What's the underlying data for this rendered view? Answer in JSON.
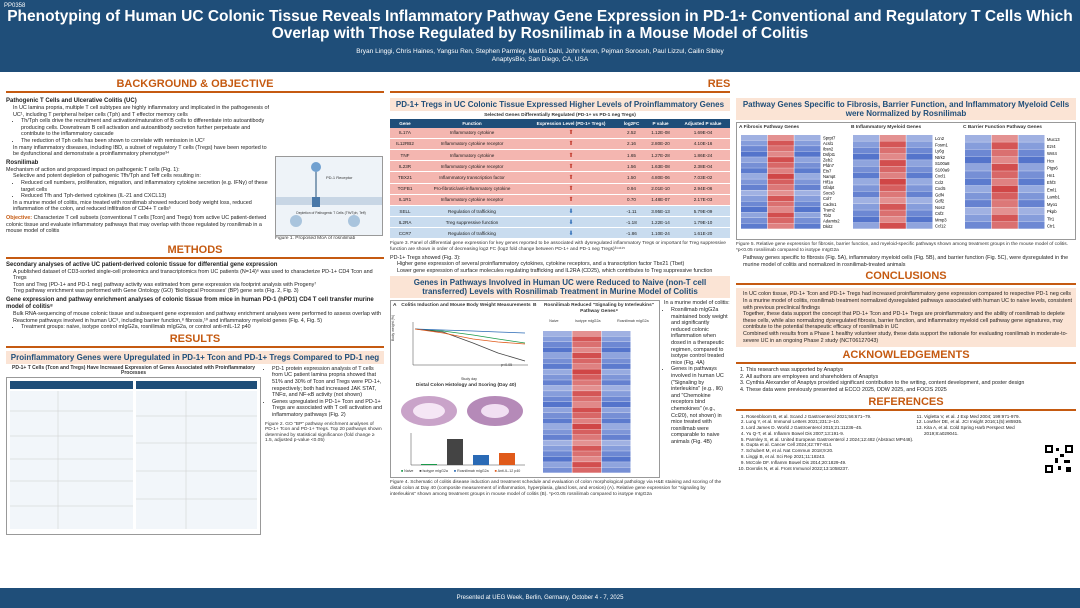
{
  "poster_id": "PP0358",
  "title": "Phenotyping of Human UC Colonic Tissue Reveals Inflammatory Pathway Gene Expression in PD-1+ Conventional and Regulatory T Cells Which Overlap with Those Regulated by Rosnilimab in a Mouse Model of Colitis",
  "authors": "Bryan Linggi, Chris Haines, Yangsu Ren, Stephen Parmley, Martin Dahl, John Kwon, Pejman Soroosh, Paul Lizzul, Cailin Sibley",
  "affiliation": "AnaptysBio, San Diego, CA, USA",
  "footer": "Presented at UEG Week, Berlin, Germany, October 4 - 7, 2025",
  "background": {
    "heading": "BACKGROUND & OBJECTIVE",
    "sub1": "Pathogenic T Cells and Ulcerative Colitis (UC)",
    "b1": "In UC lamina propria, multiple T cell subtypes are highly inflammatory and implicated in the pathogenesis of UC¹, including T peripheral helper cells (Tph) and T effector memory cells",
    "b1a": "Th/Tph cells drive the recruitment and activation/maturation of B cells to differentiate into autoantibody producing cells. Downstream B cell activation and autoantibody secretion further perpetuate and contribute to the inflammatory cascade",
    "b1b": "The reduction of Tph cells has been shown to correlate with remission in UC²",
    "b2": "In many inflammatory diseases, including IBD, a subset of regulatory T cells (Tregs) have been reported to be dysfunctional and demonstrate a proinflammatory phenotype³⁴",
    "sub2": "Rosnilimab",
    "r0": "Mechanism of action and proposed impact on pathogenic T cells (Fig. 1):",
    "r1": "Selective and potent depletion of pathogenic Tfh/Tph and Teff cells resulting in:",
    "r1a": "Reduced cell numbers, proliferation, migration, and inflammatory cytokine secretion (e.g. IFNγ) of these target cells",
    "r1b": "Reduced Tfh and Tph-derived cytokines (IL-21 and CXCL13)",
    "r2": "In a murine model of colitis, mice treated with rosnilimab showed reduced body weight loss, reduced inflammation of the colon, and reduced infiltration of CD4+ T cells⁵",
    "obj_label": "Objective:",
    "obj": "Characterize T cell subsets (conventional T cells [Tcon] and Tregs) from active UC patient-derived colonic tissue and evaluate inflammatory pathways that may overlap with those regulated by rosnilimab in a mouse model of colitis",
    "fig1_cap": "Figure 1. Proposed MoA of rosnilimab",
    "fig1_l1": "PD-1 Receptor",
    "fig1_l2": "Depletion of Pathogenic T Cells (Tfh/Tph, Teff)"
  },
  "methods": {
    "heading": "METHODS",
    "sub1": "Secondary analyses of active UC patient-derived colonic tissue for differential gene expression",
    "m1": "A published dataset of CD3-sorted single-cell proteomics and transcriptomics from UC patients (N=14)⁶ was used to characterize PD-1+ CD4 Tcon and Tregs",
    "m2": "Tcon and Treg (PD-1+ and PD-1 neg) pathway activity was estimated from gene expression via footprint analysis with Progeny⁷",
    "m3": "Treg pathway enrichment was performed with Gene Ontology (GO) 'Biological Processes' (BP) gene sets (Fig. 2, Fig. 3)",
    "sub2": "Gene expression and pathway enrichment analyses of colonic tissue from mice in human PD-1 (hPD1) CD4 T cell transfer murine model of colitis⁸",
    "m4": "Bulk RNA-sequencing of mouse colonic tissue and subsequent gene expression and pathway enrichment analyses were performed to assess overlap with Reactome pathways involved in human UC⁹, including barrier function,⁸ fibrosis,¹⁰ and inflammatory myeloid genes (Fig. 4, Fig. 5)",
    "m4a": "Treatment groups: naive, isotype control mIgG2a, rosnilimab mIgG2a, or control anti-mIL-12 p40"
  },
  "results_left": {
    "heading": "RESULTS",
    "box": "Proinflammatory Genes were Upregulated in PD-1+ Tcon and PD-1+ Tregs Compared to PD-1 neg",
    "fig_title": "PD-1+ T Cells (Tcon and Tregs) Have Increased Expression of Genes Associated with Proinflammatory Processes",
    "p1": "PD-1 protein expression analysis of T cells from UC patient lamina propria showed that 51% and 30% of Tcon and Tregs were PD-1+, respectively; both had increased JAK STAT, TNFα, and NF-κB activity (not shown)",
    "p2": "Genes upregulated in PD-1+ Tcon and PD-1+ Tregs are associated with T cell activation and inflammatory pathways (Fig. 2)",
    "fig2_cap": "Figure 2. GO \"BP\" pathway enrichment analyses of PD-1+ Tcon and PD-1+ Tregs. Top 20 pathways shown determined by statistical significance (fold change ≥ 1.5, adjusted p-value <0.05)"
  },
  "mid": {
    "heading": "RESULTS",
    "box1": "PD-1+ Tregs in UC Colonic Tissue Expressed Higher Levels of Proinflammatory Genes",
    "table_title": "Selected Genes Differentially Regulated (PD-1+ vs PD-1 neg Tregs)",
    "cols": [
      "Gene",
      "Function",
      "Expression Level (PD-1+ Tregs)",
      "log2FC",
      "P value",
      "Adjusted P value"
    ],
    "rows": [
      [
        "IL17A",
        "Inflammatory cytokine",
        "2.52",
        "1.12E-08",
        "1.69E-04"
      ],
      [
        "IL12RB2",
        "Inflammatory cytokine receptor",
        "2.16",
        "2.80E-20",
        "4.10E-16"
      ],
      [
        "TNF",
        "Inflammatory cytokine",
        "1.65",
        "1.27E-28",
        "1.86E-24"
      ],
      [
        "IL23R",
        "Inflammatory cytokine receptor",
        "1.56",
        "1.63E-08",
        "2.38E-04"
      ],
      [
        "TBX21",
        "Inflammatory transcription factor",
        "1.50",
        "4.80E-06",
        "7.03E-02"
      ],
      [
        "TGFB1",
        "Pro-fibrotic/anti-inflammatory cytokine",
        "0.94",
        "2.01E-10",
        "2.94E-06"
      ],
      [
        "IL1R1",
        "Inflammatory cytokine receptor",
        "0.70",
        "1.48E-07",
        "2.17E-03"
      ],
      [
        "SELL",
        "Regulation of trafficking",
        "-1.11",
        "3.95E-13",
        "5.79E-09"
      ],
      [
        "IL2RA",
        "Treg suppressive function",
        "-1.18",
        "1.22E-14",
        "1.79E-10"
      ],
      [
        "CCR7",
        "Regulation of trafficking",
        "-1.86",
        "1.10E-24",
        "1.61E-20"
      ]
    ],
    "fig3_cap": "Figure 3. Panel of differential gene expression for key genes reported to be associated with dysregulated inflammatory Tregs or important for Treg suppressive function are shown in order of decreasing log2 FC (log2 fold change between PD-1+ and PD-1 neg Tregs)³¹⁴¹¹⁵",
    "t1": "PD-1+ Tregs showed (Fig. 3):",
    "t2": "Higher gene expression of several proinflammatory cytokines, cytokine receptors, and a transcription factor Tbx21 (Tbet)",
    "t3": "Lower gene expression of surface molecules regulating trafficking and IL2RA (CD25), which contributes to Treg suppressive function",
    "box2": "Genes in Pathways Involved in Human UC were Reduced to Naive (non-T cell transferred) Levels with Rosnilimab Treatment in Murine Model of Colitis",
    "fig4a_title": "Colitis Induction and Mouse Body Weight Measurements",
    "fig4a_ylabel": "Body weight (%)",
    "fig4a_xlabel": "Study day",
    "fig4a_p": "p<0.05",
    "histo_title": "Distal Colon Histology and Scoring (Day 40)",
    "fig4b_title": "Rosnilimab Reduced \"Signaling by Interleukins\" Pathway Genes⁹",
    "heat_cols": [
      "Naive",
      "Isotype mIgG2a",
      "Rosnilimab mIgG2a"
    ],
    "legend": [
      "Naive",
      "Isotype mIgG2a",
      "Rosnilimab mIgG2a",
      "Anti-IL-12 p40"
    ],
    "murine_intro": "In a murine model of colitis:",
    "mb1": "Rosnilimab mIgG2a maintained body weight and significantly reduced colonic inflammation when dosed in a therapeutic regimen, compared to isotype control treated mice (Fig. 4A)",
    "mb2": "Genes in pathways involved in human UC (\"Signaling by interleukins\" (e.g., Il6) and \"Chemokine receptors bind chemokines\" (e.g., Ccl20), not shown) in mice treated with rosnilimab were comparable to naive animals (Fig. 4B)",
    "fig4_cap": "Figure 4. Schematic of colitis disease induction and treatment schedule and evaluation of colon morphological pathology via H&E staining and scoring of the distal colon at Day 40 (composite measurement of inflammation, hyperplasia, gland loss, and erosion) (A). Relative gene expression for \"signaling by interleukins\" shown among treatment groups in mouse model of colitis (B). *p<0.05 rosnilimab compared to isotype mIgG2a"
  },
  "right": {
    "box1": "Pathway Genes Specific to Fibrosis, Barrier Function, and Inflammatory Myeloid Cells were Normalized by Rosnilimab",
    "panelA": "Fibrosis Pathway Genes",
    "panelB": "Inflammatory Myeloid Genes",
    "panelC": "Barrier Function Pathway Genes",
    "genesA": [
      "Sprpt7",
      "Acsl1",
      "Ibsn2",
      "Dsfpt1",
      "Zeb2",
      "Pfdn7",
      "Ets7",
      "Nampt",
      "Hif1a",
      "Gfalpt",
      "Socs3",
      "Col7",
      "Cadm1",
      "Tram2",
      "Tbl2",
      "Adamts2",
      "Dkit2"
    ],
    "genesB": [
      "Lcn2",
      "Fosm1",
      "Ly6g",
      "Ntrk2",
      "S100a8",
      "S100a9",
      "Cxcl1",
      "Ccl2",
      "Cxcl5",
      "Gdf4",
      "Gdf2",
      "Nos2",
      "Csf2",
      "Mmp3",
      "Ccl12"
    ],
    "genesC": [
      "Muc13",
      "Ezr4",
      "Wnt4",
      "Hcx",
      "Ptgs6",
      "Hn1",
      "Ehf3",
      "Eml1",
      "Lamb1",
      "Myo1",
      "Pkpb",
      "Tlr1",
      "Ctr1"
    ],
    "fig5_cap": "Figure 5. Relative gene expression for fibrosis, barrier function, and myeloid-specific pathways shown among treatment groups in the mouse model of colitis. *p<0.05 rosnilimab compared to isotype mIgG2a",
    "r1": "Pathway genes specific to fibrosis (Fig. 5A), inflammatory myeloid cells (Fig. 5B), and barrier function (Fig. 5C), were dysregulated in the murine model of colitis and normalized in rosnilimab-treated animals",
    "conc_heading": "CONCLUSIONS",
    "c1": "In UC colon tissue, PD-1+ Tcon and PD-1+ Tregs had increased proinflammatory gene expression compared to respective PD-1 neg cells",
    "c2": "In a murine model of colitis, rosnilimab treatment normalized dysregulated pathways associated with human UC to naive levels, consistent with previous preclinical findings",
    "c3": "Together, these data support the concept that PD-1+ Tcon and PD-1+ Tregs are proinflammatory and the ability of rosnilimab to deplete these cells, while also normalizing dysregulated fibrosis, barrier function, and inflammatory myeloid cell pathway gene signatures, may contribute to the potential therapeutic efficacy of rosnilimab in UC",
    "c4": "Combined with results from a Phase 1 healthy volunteer study, these data support the rationale for evaluating rosnilimab in moderate-to-severe UC in an ongoing Phase 2 study (NCT06127043)",
    "ack_heading": "ACKNOWLEDGEMENTS",
    "a1": "This research was supported by Anaptys",
    "a2": "All authors are employees and shareholders of Anaptys",
    "a3": "Cynthia Alexander of Anaptys provided significant contribution to the writing, content development, and poster design",
    "a4": "These data were previously presented at ECCO 2025, DDW 2025, and FOCIS 2025",
    "ref_heading": "REFERENCES",
    "refs_l": [
      "Rosenbloom B, et al. Scand J Gastroenterol 2021;56:671–79.",
      "Lung Y, et al. Immunol Letters 2021;231:2–10.",
      "Lord James D. World J Gastroenterol 2015;21:11236–45.",
      "Yu Q-T, et al. Inflamm Bowel Dis 2007;13:191-9.",
      "Parmley S, et al. United European Gastroenterol J 2024;12:482 (Abstract MP448).",
      "Gupta et al. Cancer Cell 2024;42:797-814.",
      "Schubert M, et al. Nat Commun 2018;9:20.",
      "Linggi B, et al. Sci Rep 2021;11:18243.",
      "McCole DF. Inflamm Bowel Dis 2014;20:1829-49.",
      "Dovrolis N, et al. Front Immunol 2022;13:1058237."
    ],
    "refs_r": [
      "Vigletta V, et al. J Exp Med 2004; 199:971-979.",
      "Lowther DE, et al. JCI Insight 2016;1(5):e85935.",
      "Kita A, et al. Cold Spring Harb Perspect Med 2019;8:a029041."
    ]
  }
}
